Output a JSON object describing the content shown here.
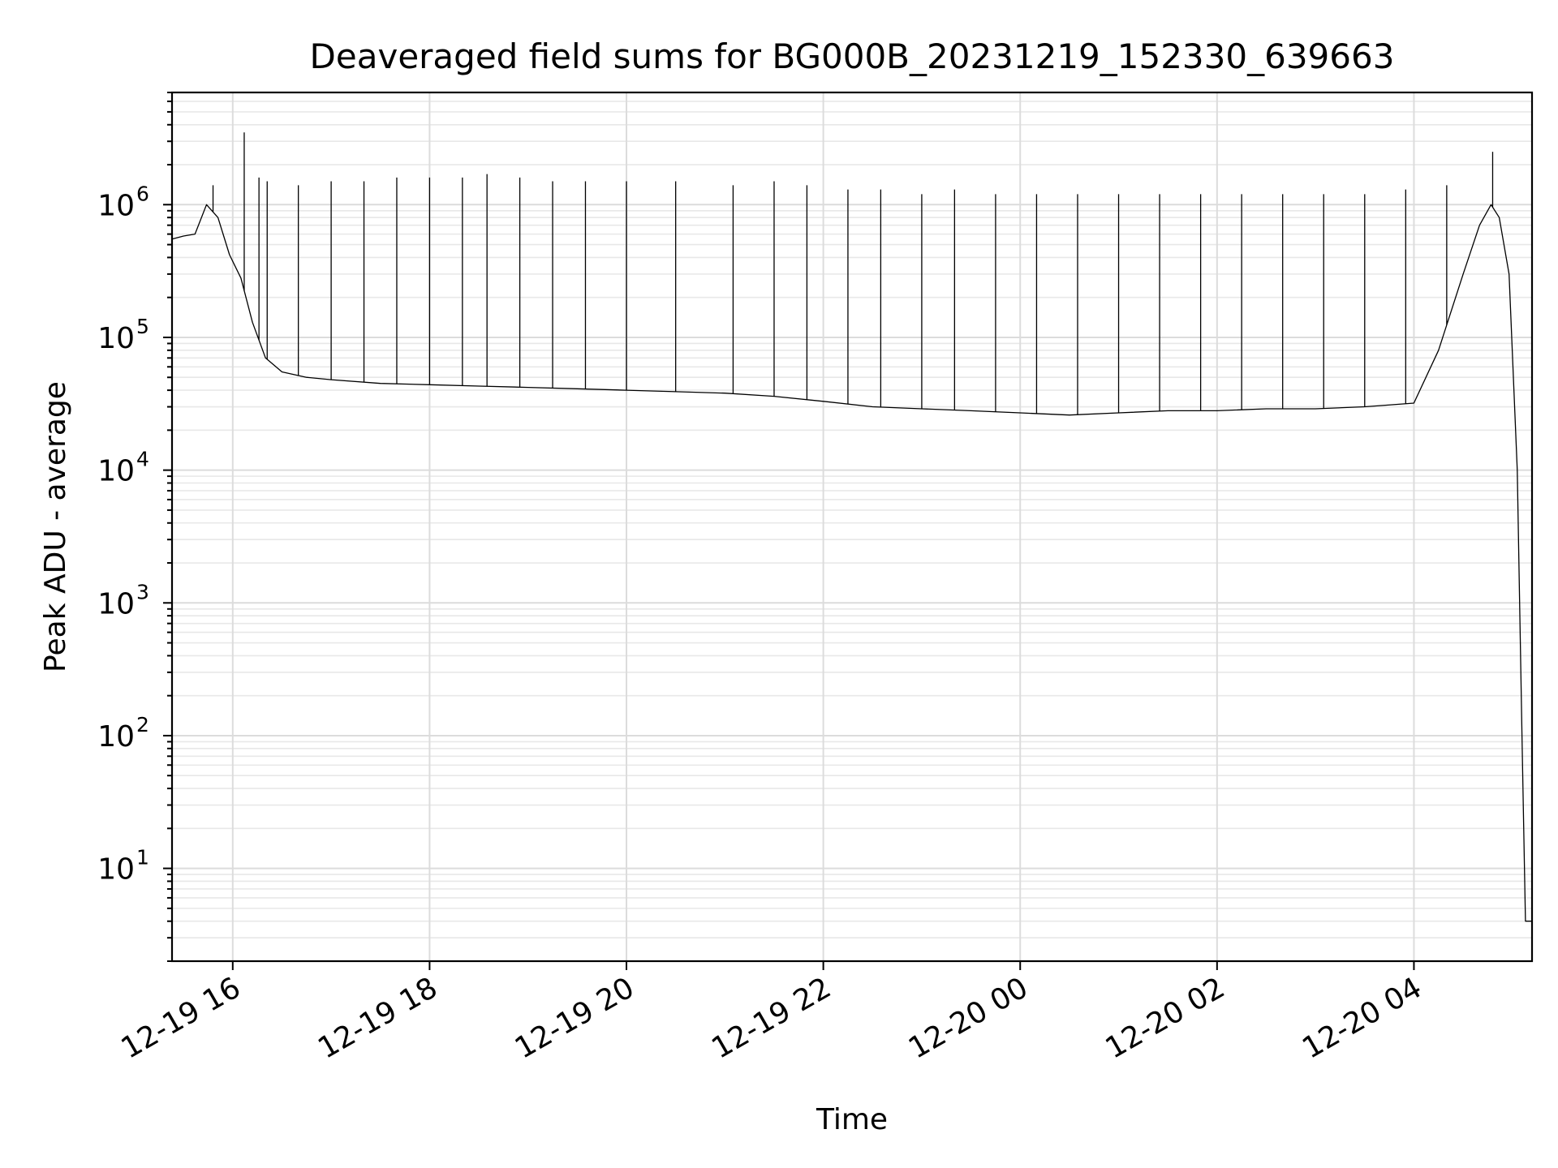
{
  "chart_data": {
    "type": "line",
    "title": "Deaveraged field sums for BG000B_20231219_152330_639663",
    "xlabel": "Time",
    "ylabel": "Peak ADU - average",
    "y_scale": "log",
    "ylim": [
      2,
      7000000
    ],
    "xlim": [
      "2023-12-19 15:23",
      "2023-12-20 05:12"
    ],
    "grid": true,
    "color": "#000000",
    "x_ticks": [
      {
        "t": "2023-12-19 16:00",
        "label": "12-19 16"
      },
      {
        "t": "2023-12-19 18:00",
        "label": "12-19 18"
      },
      {
        "t": "2023-12-19 20:00",
        "label": "12-19 20"
      },
      {
        "t": "2023-12-19 22:00",
        "label": "12-19 22"
      },
      {
        "t": "2023-12-20 00:00",
        "label": "12-20 00"
      },
      {
        "t": "2023-12-20 02:00",
        "label": "12-20 02"
      },
      {
        "t": "2023-12-20 04:00",
        "label": "12-20 04"
      }
    ],
    "y_ticks": [
      {
        "value": 10,
        "base": "10",
        "exp": "1"
      },
      {
        "value": 100,
        "base": "10",
        "exp": "2"
      },
      {
        "value": 1000,
        "base": "10",
        "exp": "3"
      },
      {
        "value": 10000,
        "base": "10",
        "exp": "4"
      },
      {
        "value": 100000,
        "base": "10",
        "exp": "5"
      },
      {
        "value": 1000000,
        "base": "10",
        "exp": "6"
      }
    ],
    "series": [
      {
        "x": [
          "2023-12-19 15:23",
          "2023-12-19 15:30",
          "2023-12-19 15:37",
          "2023-12-19 15:44",
          "2023-12-19 15:51",
          "2023-12-19 15:58",
          "2023-12-19 16:05",
          "2023-12-19 16:12",
          "2023-12-19 16:20",
          "2023-12-19 16:30",
          "2023-12-19 16:45",
          "2023-12-19 17:00",
          "2023-12-19 17:30",
          "2023-12-19 18:00",
          "2023-12-19 18:30",
          "2023-12-19 19:00",
          "2023-12-19 19:30",
          "2023-12-19 20:00",
          "2023-12-19 20:30",
          "2023-12-19 21:00",
          "2023-12-19 21:30",
          "2023-12-19 22:00",
          "2023-12-19 22:30",
          "2023-12-19 23:00",
          "2023-12-19 23:30",
          "2023-12-20 00:00",
          "2023-12-20 00:30",
          "2023-12-20 01:00",
          "2023-12-20 01:30",
          "2023-12-20 02:00",
          "2023-12-20 02:30",
          "2023-12-20 03:00",
          "2023-12-20 03:30",
          "2023-12-20 04:00",
          "2023-12-20 04:15",
          "2023-12-20 04:30",
          "2023-12-20 04:40",
          "2023-12-20 04:47",
          "2023-12-20 04:52",
          "2023-12-20 04:58",
          "2023-12-20 05:03",
          "2023-12-20 05:06",
          "2023-12-20 05:08",
          "2023-12-20 05:10",
          "2023-12-20 05:12"
        ],
        "y": [
          550000,
          580000,
          600000,
          1000000,
          800000,
          420000,
          280000,
          130000,
          70000,
          55000,
          50000,
          48000,
          45000,
          44000,
          43000,
          42000,
          41000,
          40000,
          39000,
          38000,
          36000,
          33000,
          30000,
          29000,
          28000,
          27000,
          26000,
          27000,
          28000,
          28000,
          29000,
          29000,
          30000,
          32000,
          80000,
          300000,
          700000,
          1000000,
          800000,
          300000,
          10000,
          80,
          4,
          4,
          4
        ]
      }
    ],
    "spikes": [
      {
        "x": "2023-12-19 15:48",
        "y": 1400000
      },
      {
        "x": "2023-12-19 16:07",
        "y": 3500000
      },
      {
        "x": "2023-12-19 16:16",
        "y": 1600000
      },
      {
        "x": "2023-12-19 16:21",
        "y": 1500000
      },
      {
        "x": "2023-12-19 16:40",
        "y": 1400000
      },
      {
        "x": "2023-12-19 17:00",
        "y": 1500000
      },
      {
        "x": "2023-12-19 17:20",
        "y": 1500000
      },
      {
        "x": "2023-12-19 17:40",
        "y": 1600000
      },
      {
        "x": "2023-12-19 18:00",
        "y": 1600000
      },
      {
        "x": "2023-12-19 18:20",
        "y": 1600000
      },
      {
        "x": "2023-12-19 18:35",
        "y": 1700000
      },
      {
        "x": "2023-12-19 18:55",
        "y": 1600000
      },
      {
        "x": "2023-12-19 19:15",
        "y": 1500000
      },
      {
        "x": "2023-12-19 19:35",
        "y": 1500000
      },
      {
        "x": "2023-12-19 20:00",
        "y": 1500000
      },
      {
        "x": "2023-12-19 20:30",
        "y": 1500000
      },
      {
        "x": "2023-12-19 21:05",
        "y": 1400000
      },
      {
        "x": "2023-12-19 21:30",
        "y": 1500000
      },
      {
        "x": "2023-12-19 21:50",
        "y": 1400000
      },
      {
        "x": "2023-12-19 22:15",
        "y": 1300000
      },
      {
        "x": "2023-12-19 22:35",
        "y": 1300000
      },
      {
        "x": "2023-12-19 23:00",
        "y": 1200000
      },
      {
        "x": "2023-12-19 23:20",
        "y": 1300000
      },
      {
        "x": "2023-12-19 23:45",
        "y": 1200000
      },
      {
        "x": "2023-12-20 00:10",
        "y": 1200000
      },
      {
        "x": "2023-12-20 00:35",
        "y": 1200000
      },
      {
        "x": "2023-12-20 01:00",
        "y": 1200000
      },
      {
        "x": "2023-12-20 01:25",
        "y": 1200000
      },
      {
        "x": "2023-12-20 01:50",
        "y": 1200000
      },
      {
        "x": "2023-12-20 02:15",
        "y": 1200000
      },
      {
        "x": "2023-12-20 02:40",
        "y": 1200000
      },
      {
        "x": "2023-12-20 03:05",
        "y": 1200000
      },
      {
        "x": "2023-12-20 03:30",
        "y": 1200000
      },
      {
        "x": "2023-12-20 03:55",
        "y": 1300000
      },
      {
        "x": "2023-12-20 04:20",
        "y": 1400000
      },
      {
        "x": "2023-12-20 04:48",
        "y": 2500000
      }
    ]
  }
}
